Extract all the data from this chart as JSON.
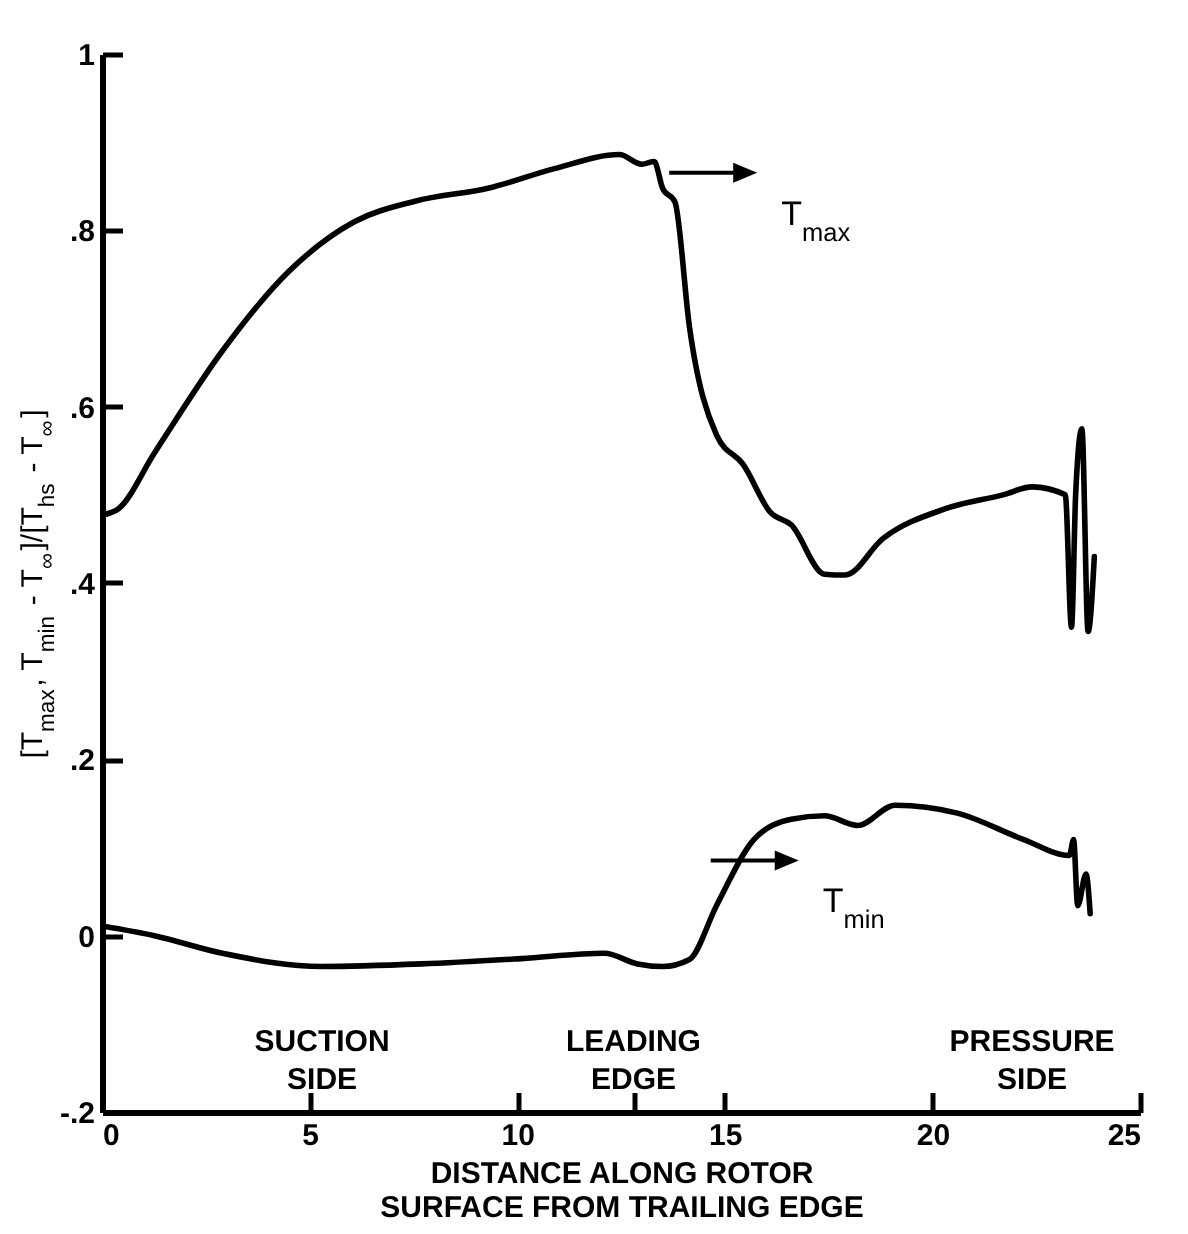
{
  "chart_data": {
    "type": "line",
    "xlabel": "DISTANCE ALONG ROTOR SURFACE FROM TRAILING EDGE",
    "ylabel": "[T$_{max}$, T$_{min}$ - T$_{∞}$]/[T$_{hs}$ - T$_{∞}$]",
    "xlim": [
      0,
      25
    ],
    "xticks": [
      0,
      5,
      10,
      15,
      20,
      25,
      {
        "value": 12.8,
        "label": null
      }
    ],
    "ylim": [
      -0.2,
      1
    ],
    "yticks": [
      {
        "value": -0.2,
        "label": "-.2"
      },
      0,
      {
        "value": 0.2,
        "label": ".2"
      },
      {
        "value": 0.4,
        "label": ".4"
      },
      {
        "value": 0.6,
        "label": ".6"
      },
      {
        "value": 0.8,
        "label": ".8"
      },
      1
    ],
    "grid": false,
    "series": [
      {
        "name": "T$_{max}$",
        "color": "#000000",
        "x": [
          0,
          0.39,
          1.27,
          2.88,
          4.49,
          6.09,
          7.54,
          9.32,
          10.9,
          12.46,
          13.0,
          13.3,
          13.5,
          13.8,
          14.15,
          14.8,
          15.45,
          16.1,
          16.6,
          17.4,
          17.9,
          18.8,
          20.3,
          21.7,
          22.4,
          23.2,
          23.35,
          23.45,
          23.6,
          23.75,
          23.9
        ],
        "values": [
          0.477,
          0.484,
          0.548,
          0.662,
          0.753,
          0.81,
          0.833,
          0.848,
          0.87,
          0.886,
          0.875,
          0.878,
          0.848,
          0.832,
          0.69,
          0.568,
          0.534,
          0.48,
          0.466,
          0.41,
          0.409,
          0.45,
          0.484,
          0.5,
          0.509,
          0.5,
          0.35,
          0.5,
          0.575,
          0.345,
          0.43
        ]
      },
      {
        "name": "T$_{min}$",
        "color": "#000000",
        "x": [
          0,
          1.26,
          2.9,
          5.3,
          7.7,
          10.1,
          12.1,
          12.9,
          13.5,
          14.15,
          14.8,
          15.7,
          16.6,
          17.4,
          18.2,
          19.1,
          20.6,
          22.2,
          23.3,
          23.4,
          23.5,
          23.7,
          23.8
        ],
        "values": [
          0.011,
          0.0,
          -0.02,
          -0.035,
          -0.032,
          -0.026,
          -0.02,
          -0.032,
          -0.035,
          -0.027,
          0.034,
          0.109,
          0.132,
          0.136,
          0.125,
          0.148,
          0.139,
          0.109,
          0.091,
          0.109,
          0.034,
          0.07,
          0.025
        ]
      }
    ],
    "annotations": [
      "SUCTION SIDE",
      "LEADING EDGE",
      "PRESSURE SIDE"
    ]
  }
}
